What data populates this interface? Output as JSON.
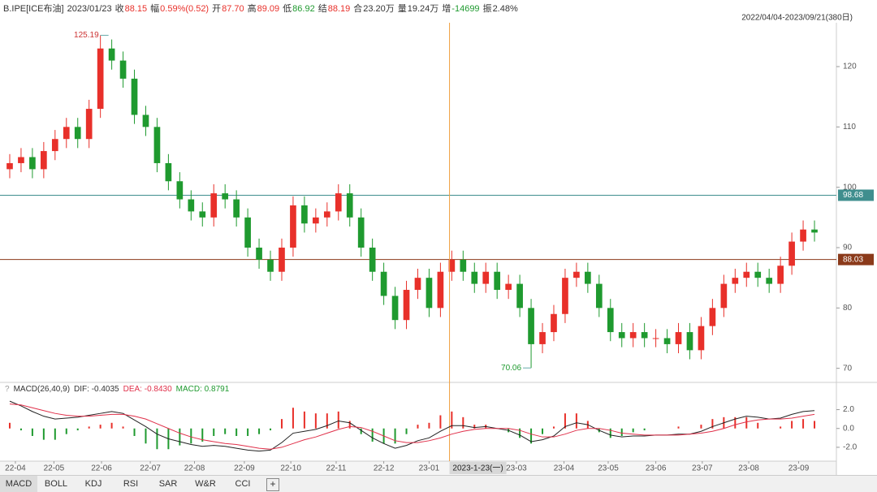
{
  "header": {
    "symbol": "B.IPE[ICE布油]",
    "date": "2023/01/23",
    "fields": [
      {
        "label": "收",
        "value": "88.15",
        "color": "#e8302a"
      },
      {
        "label": "幅",
        "value": "0.59%(0.52)",
        "color": "#e8302a"
      },
      {
        "label": "开",
        "value": "87.70",
        "color": "#e8302a"
      },
      {
        "label": "高",
        "value": "89.09",
        "color": "#e8302a"
      },
      {
        "label": "低",
        "value": "86.92",
        "color": "#1f9a2f"
      },
      {
        "label": "结",
        "value": "88.19",
        "color": "#e8302a"
      },
      {
        "label": "合",
        "value": "23.20万",
        "color": "#333333"
      },
      {
        "label": "量",
        "value": "19.24万",
        "color": "#333333"
      },
      {
        "label": "增",
        "value": "-14699",
        "color": "#1f9a2f"
      },
      {
        "label": "振",
        "value": "2.48%",
        "color": "#333333"
      }
    ],
    "range": "2022/04/04-2023/09/21(380日)"
  },
  "macd_legend": [
    {
      "text": "MACD(26,40,9)",
      "color": "#333333"
    },
    {
      "text": "DIF: -0.4035",
      "color": "#333333"
    },
    {
      "text": "DEA: -0.8430",
      "color": "#e0304a"
    },
    {
      "text": "MACD: 0.8791",
      "color": "#1f9a2f"
    }
  ],
  "tabs": [
    "MACD",
    "BOLL",
    "KDJ",
    "RSI",
    "SAR",
    "W&R",
    "CCI"
  ],
  "chart_data": [
    {
      "type": "candlestick",
      "up_color": "#e8302a",
      "down_color": "#1f9a2f",
      "open": [
        103,
        104,
        105,
        103,
        106,
        108,
        110,
        108,
        113,
        123,
        121,
        118,
        112,
        110,
        104,
        101,
        98,
        96,
        95,
        99,
        98,
        95,
        90,
        88,
        86,
        90,
        97,
        94,
        95,
        96,
        99,
        95,
        90,
        86,
        82,
        78,
        83,
        85,
        80,
        86,
        88,
        86,
        84,
        86,
        83,
        84,
        80,
        74,
        76,
        79,
        85,
        86,
        84,
        80,
        76,
        75,
        76,
        75,
        75,
        74,
        76,
        73,
        77,
        80,
        84,
        85,
        86,
        85,
        84,
        87,
        91,
        93
      ],
      "high": [
        105.5,
        106.5,
        106.5,
        107.5,
        109.5,
        111.5,
        111.5,
        114.5,
        125.19,
        124.5,
        122.5,
        119.5,
        113.5,
        111.5,
        105.5,
        102.5,
        99.5,
        97.5,
        100.5,
        100.5,
        99.5,
        96.5,
        91.5,
        89.5,
        91.5,
        98.5,
        98.5,
        96.5,
        97.5,
        100.5,
        100.5,
        96.5,
        91.5,
        87.5,
        83.5,
        84.5,
        86.5,
        86.5,
        87.5,
        89.5,
        89.5,
        87.5,
        87.5,
        87.5,
        85.5,
        85.5,
        81.5,
        77.5,
        80.5,
        86.5,
        87.5,
        87.5,
        85.5,
        81.5,
        77.5,
        77.5,
        77.5,
        76.5,
        76.5,
        77.5,
        77.5,
        78.5,
        81.5,
        85.5,
        86.5,
        87.5,
        87.5,
        86.5,
        88.5,
        92.5,
        94.5,
        94.5
      ],
      "low": [
        101.5,
        102.5,
        101.5,
        101.5,
        104.5,
        106.5,
        106.5,
        106.5,
        111.5,
        119.5,
        116.5,
        110.5,
        108.5,
        102.5,
        99.5,
        96.5,
        94.5,
        93.5,
        93.5,
        96.5,
        93.5,
        88.5,
        86.5,
        84.5,
        84.5,
        88.5,
        92.5,
        92.5,
        93.5,
        94.5,
        93.5,
        88.5,
        84.5,
        80.5,
        76.5,
        76.5,
        81.5,
        78.5,
        78.5,
        84.5,
        84.5,
        82.5,
        82.5,
        81.5,
        81.5,
        78.5,
        70.06,
        72.5,
        74.5,
        77.5,
        83.5,
        82.5,
        78.5,
        74.5,
        73.5,
        73.5,
        73.5,
        73.5,
        72.5,
        72.5,
        71.5,
        71.5,
        75.5,
        78.5,
        82.5,
        83.5,
        83.5,
        82.5,
        82.5,
        85.5,
        89.5,
        91
      ],
      "close": [
        104,
        105,
        103,
        106,
        108,
        110,
        108,
        113,
        123,
        121,
        118,
        112,
        110,
        104,
        101,
        98,
        96,
        95,
        99,
        98,
        95,
        90,
        88,
        86,
        90,
        97,
        94,
        95,
        96,
        99,
        95,
        90,
        86,
        82,
        78,
        83,
        85,
        80,
        86,
        88,
        86,
        84,
        86,
        83,
        84,
        80,
        74,
        76,
        79,
        85,
        86,
        84,
        80,
        76,
        75,
        76,
        75,
        75,
        74,
        76,
        73,
        77,
        80,
        84,
        85,
        86,
        85,
        84,
        87,
        91,
        93,
        92.5
      ],
      "max_index": 8,
      "min_index": 46,
      "ylim": [
        67.8,
        127
      ],
      "yticks": [
        70,
        80,
        90,
        100,
        110,
        120
      ],
      "xlim": [
        0,
        72
      ],
      "xticks": [
        {
          "value": 1,
          "label": "22-04"
        },
        {
          "value": 4.4,
          "label": "22-05"
        },
        {
          "value": 8.6,
          "label": "22-06"
        },
        {
          "value": 12.9,
          "label": "22-07"
        },
        {
          "value": 16.8,
          "label": "22-08"
        },
        {
          "value": 21.2,
          "label": "22-09"
        },
        {
          "value": 25.3,
          "label": "22-10"
        },
        {
          "value": 29.3,
          "label": "22-11"
        },
        {
          "value": 33.5,
          "label": "22-12"
        },
        {
          "value": 37.5,
          "label": "23-01"
        },
        {
          "value": 45.2,
          "label": "23-03"
        },
        {
          "value": 49.4,
          "label": "23-04"
        },
        {
          "value": 53.3,
          "label": "23-05"
        },
        {
          "value": 57.5,
          "label": "23-06"
        },
        {
          "value": 61.6,
          "label": "23-07"
        },
        {
          "value": 65.7,
          "label": "23-08"
        },
        {
          "value": 70.1,
          "label": "23-09"
        }
      ],
      "crosshair": {
        "x": 39.3,
        "label": "2023-1-23(一)",
        "color": "#f0a040"
      },
      "hlines": [
        {
          "value": 98.68,
          "color": "#3f8e8e"
        },
        {
          "value": 88.03,
          "color": "#8b3a1a"
        }
      ]
    },
    {
      "type": "macd",
      "ylim": [
        -3.3,
        3.6
      ],
      "xlim": [
        0,
        72
      ],
      "yticks": [
        {
          "value": 2,
          "label": "2.0"
        },
        {
          "value": 0,
          "label": "0.0"
        },
        {
          "value": -2,
          "label": "-2.0"
        }
      ],
      "series": [
        {
          "name": "DIF",
          "color": "#222222",
          "values": [
            2.9,
            2.4,
            1.8,
            1.3,
            1.0,
            1.1,
            1.2,
            1.4,
            1.6,
            1.8,
            1.6,
            0.9,
            0.2,
            -0.6,
            -1.1,
            -1.4,
            -1.7,
            -1.9,
            -1.8,
            -1.9,
            -2.1,
            -2.3,
            -2.4,
            -2.3,
            -1.5,
            -0.5,
            -0.3,
            -0.1,
            0.3,
            0.8,
            0.6,
            -0.2,
            -1.0,
            -1.6,
            -2.1,
            -1.8,
            -1.3,
            -1.0,
            -0.3,
            0.3,
            0.3,
            0.1,
            0.2,
            0.0,
            -0.2,
            -0.7,
            -1.4,
            -1.2,
            -0.8,
            0.2,
            0.6,
            0.4,
            -0.2,
            -0.7,
            -0.9,
            -0.8,
            -0.8,
            -0.7,
            -0.7,
            -0.6,
            -0.6,
            -0.3,
            0.2,
            0.6,
            1.0,
            1.3,
            1.2,
            1.0,
            1.1,
            1.5,
            1.8,
            1.9
          ]
        },
        {
          "name": "DEA",
          "color": "#e0304a",
          "values": [
            2.6,
            2.5,
            2.2,
            1.9,
            1.6,
            1.4,
            1.3,
            1.3,
            1.4,
            1.5,
            1.5,
            1.3,
            1.0,
            0.5,
            0.0,
            -0.5,
            -0.9,
            -1.2,
            -1.4,
            -1.6,
            -1.7,
            -1.9,
            -2.1,
            -2.2,
            -2.0,
            -1.6,
            -1.2,
            -0.9,
            -0.5,
            -0.1,
            0.2,
            0.1,
            -0.3,
            -0.8,
            -1.3,
            -1.5,
            -1.5,
            -1.3,
            -1.0,
            -0.6,
            -0.3,
            -0.1,
            0.0,
            0.0,
            0.0,
            -0.2,
            -0.6,
            -0.9,
            -0.9,
            -0.6,
            -0.2,
            0.0,
            0.0,
            -0.2,
            -0.5,
            -0.6,
            -0.7,
            -0.7,
            -0.7,
            -0.7,
            -0.6,
            -0.5,
            -0.3,
            0.0,
            0.4,
            0.7,
            0.9,
            1.0,
            1.0,
            1.1,
            1.3,
            1.5
          ]
        }
      ],
      "histogram": {
        "name": "MACD",
        "up_color": "#e8302a",
        "down_color": "#1f9a2f",
        "values": [
          0.6,
          -0.2,
          -0.8,
          -1.2,
          -1.2,
          -0.6,
          -0.2,
          0.2,
          0.4,
          0.6,
          0.2,
          -0.8,
          -1.6,
          -2.2,
          -2.2,
          -1.8,
          -1.6,
          -1.4,
          -0.8,
          -0.6,
          -0.8,
          -0.8,
          -0.6,
          -0.2,
          1.0,
          2.2,
          1.8,
          1.6,
          1.6,
          1.8,
          0.8,
          -0.6,
          -1.4,
          -1.6,
          -1.6,
          -0.6,
          0.4,
          0.6,
          1.4,
          1.8,
          1.2,
          0.4,
          0.4,
          0.0,
          -0.4,
          -1.0,
          -1.6,
          -0.6,
          0.2,
          1.6,
          1.6,
          0.8,
          -0.4,
          -1.0,
          -0.8,
          -0.4,
          -0.2,
          0.0,
          0.0,
          0.2,
          0.0,
          0.4,
          1.0,
          1.2,
          1.2,
          1.2,
          0.6,
          0.0,
          0.2,
          0.8,
          1.0,
          0.8
        ]
      }
    }
  ]
}
